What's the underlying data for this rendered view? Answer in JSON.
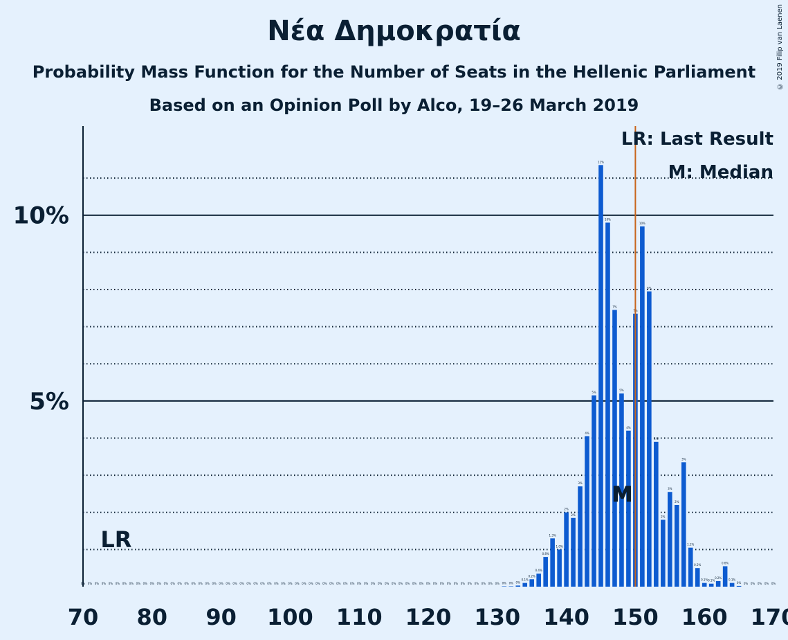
{
  "title": "Νέα Δημοκρατία",
  "subtitle_1": "Probability Mass Function for the Number of Seats in the Hellenic Parliament",
  "subtitle_2": "Based on an Opinion Poll by Alco, 19–26 March 2019",
  "copyright": "© 2019 Filip van Laenen",
  "legend": {
    "last_result": "LR: Last Result",
    "median": "M: Median"
  },
  "markers": {
    "lr_label": "LR",
    "median_label": "M"
  },
  "colors": {
    "background": "#e5f1fd",
    "bar": "#0d5bd0",
    "last_result_line": "#c8651b",
    "text": "#0a1f33"
  },
  "chart_data": {
    "type": "bar",
    "x_unit": "seats",
    "xlim": [
      70,
      170
    ],
    "ylim": [
      0,
      12.4
    ],
    "x_ticks": [
      "70",
      "80",
      "90",
      "100",
      "110",
      "120",
      "130",
      "140",
      "150",
      "160",
      "170"
    ],
    "y_ticks": [
      {
        "value": 5,
        "label": "5%"
      },
      {
        "value": 10,
        "label": "10%"
      }
    ],
    "grid_dotted": [
      1,
      2,
      3,
      4,
      6,
      7,
      8,
      9,
      11
    ],
    "last_result_seats": 75,
    "median_seats": 148,
    "vertical_line_seats": 150,
    "x": [
      70,
      71,
      72,
      73,
      74,
      75,
      76,
      77,
      78,
      79,
      80,
      81,
      82,
      83,
      84,
      85,
      86,
      87,
      88,
      89,
      90,
      91,
      92,
      93,
      94,
      95,
      96,
      97,
      98,
      99,
      100,
      101,
      102,
      103,
      104,
      105,
      106,
      107,
      108,
      109,
      110,
      111,
      112,
      113,
      114,
      115,
      116,
      117,
      118,
      119,
      120,
      121,
      122,
      123,
      124,
      125,
      126,
      127,
      128,
      129,
      130,
      131,
      132,
      133,
      134,
      135,
      136,
      137,
      138,
      139,
      140,
      141,
      142,
      143,
      144,
      145,
      146,
      147,
      148,
      149,
      150,
      151,
      152,
      153,
      154,
      155,
      156,
      157,
      158,
      159,
      160,
      161,
      162,
      163,
      164,
      165,
      166,
      167,
      168,
      169,
      170
    ],
    "values": [
      0,
      0,
      0,
      0,
      0,
      0,
      0,
      0,
      0,
      0,
      0,
      0,
      0,
      0,
      0,
      0,
      0,
      0,
      0,
      0,
      0,
      0,
      0,
      0,
      0,
      0,
      0,
      0,
      0,
      0,
      0,
      0,
      0,
      0,
      0,
      0,
      0,
      0,
      0,
      0,
      0,
      0,
      0,
      0,
      0,
      0,
      0,
      0,
      0,
      0,
      0,
      0,
      0,
      0,
      0,
      0,
      0,
      0,
      0,
      0,
      0,
      0.01,
      0.01,
      0.03,
      0.1,
      0.2,
      0.35,
      0.8,
      1.3,
      1.0,
      2.0,
      1.85,
      2.7,
      4.05,
      5.15,
      11.35,
      9.8,
      7.45,
      5.2,
      4.2,
      7.35,
      9.7,
      7.95,
      3.9,
      1.8,
      2.55,
      2.2,
      3.35,
      1.05,
      0.5,
      0.1,
      0.08,
      0.15,
      0.55,
      0.1,
      0.02,
      0,
      0,
      0,
      0,
      0
    ],
    "bar_labels": [
      "0%",
      "0%",
      "0%",
      "0%",
      "0%",
      "0%",
      "0%",
      "0%",
      "0%",
      "0%",
      "0%",
      "0%",
      "0%",
      "0%",
      "0%",
      "0%",
      "0%",
      "0%",
      "0%",
      "0%",
      "0%",
      "0%",
      "0%",
      "0%",
      "0%",
      "0%",
      "0%",
      "0%",
      "0%",
      "0%",
      "0%",
      "0%",
      "0%",
      "0%",
      "0%",
      "0%",
      "0%",
      "0%",
      "0%",
      "0%",
      "0%",
      "0%",
      "0%",
      "0%",
      "0%",
      "0%",
      "0%",
      "0%",
      "0%",
      "0%",
      "0%",
      "0%",
      "0%",
      "0%",
      "0%",
      "0%",
      "0%",
      "0%",
      "0%",
      "0%",
      "0%",
      "0%",
      "0%",
      "0%",
      "0.1%",
      "0.2%",
      "0.4%",
      "0.8%",
      "1.3%",
      "1.0%",
      "2%",
      "2%",
      "3%",
      "4%",
      "5%",
      "11%",
      "10%",
      "7%",
      "5%",
      "4%",
      "7%",
      "10%",
      "8%",
      "4%",
      "2%",
      "3%",
      "2%",
      "3%",
      "1.1%",
      "0.5%",
      "0.1%",
      "0.1%",
      "0.2%",
      "0.6%",
      "0.1%",
      "0%",
      "0%",
      "0%",
      "0%",
      "0%",
      "0%"
    ]
  }
}
